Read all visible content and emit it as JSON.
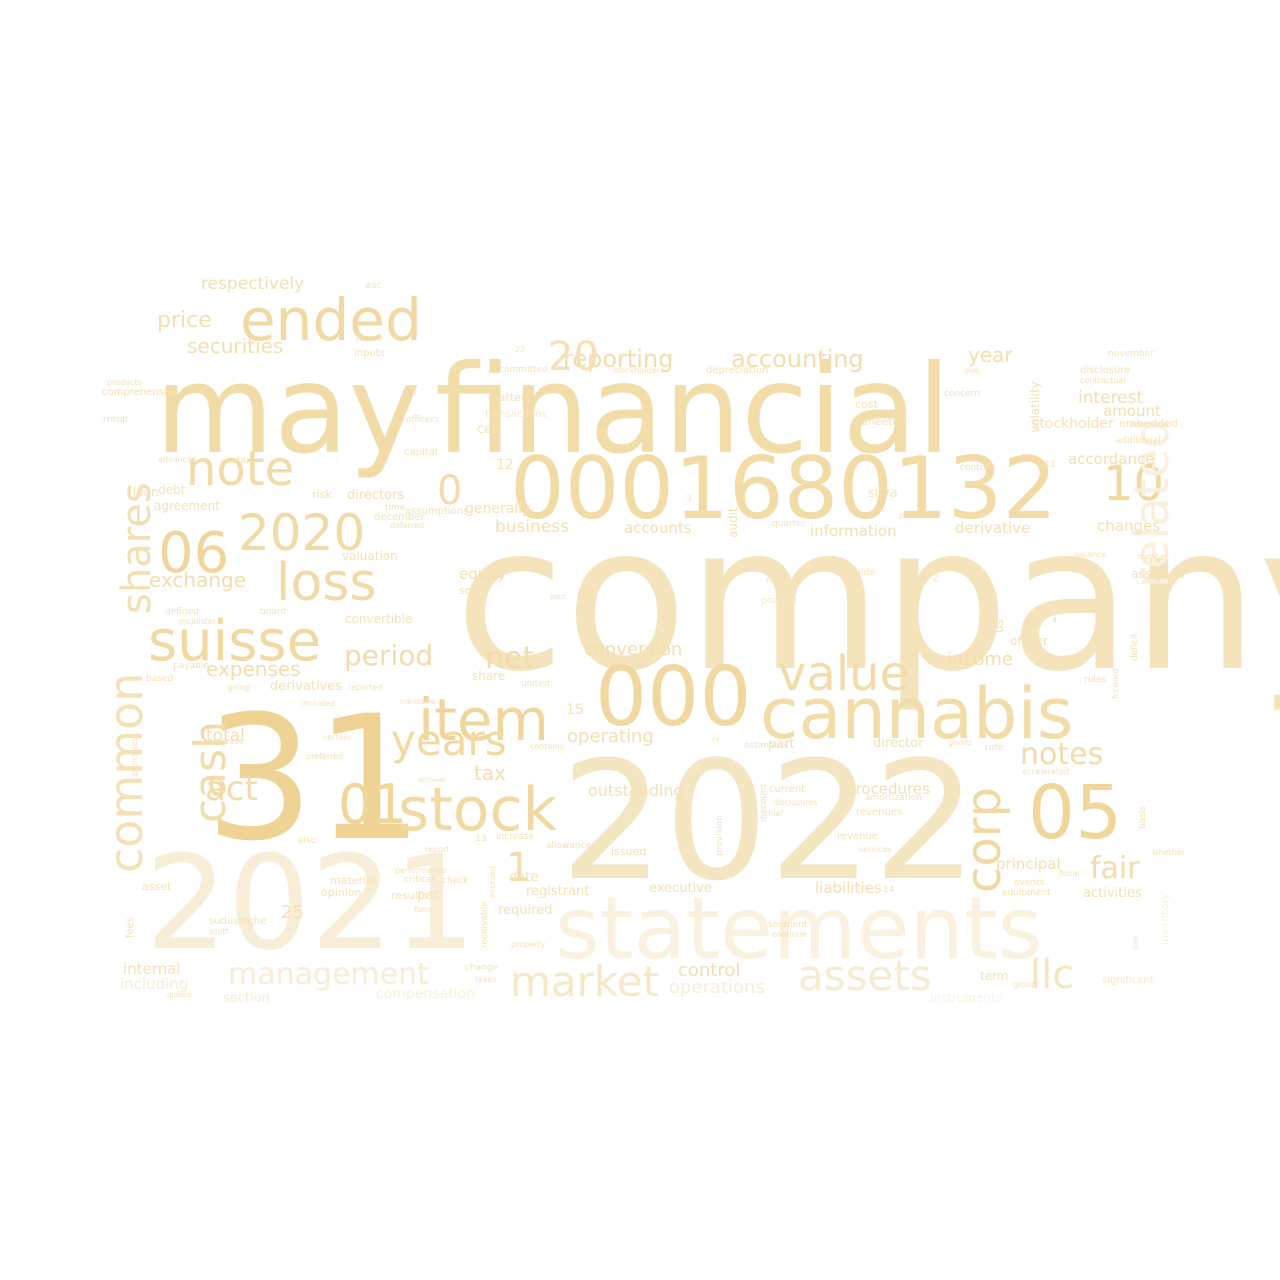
{
  "words": [
    {
      "text": "company",
      "shade": "#f4e3bb"
    },
    {
      "text": "may",
      "shade": "#f1dba6"
    },
    {
      "text": "financial",
      "shade": "#f2dda9"
    },
    {
      "text": "31",
      "shade": "#efd394"
    },
    {
      "text": "2022",
      "shade": "#f5e6c2"
    },
    {
      "text": "2021",
      "shade": "#f8edd6"
    },
    {
      "text": "statements",
      "shade": "#faf1df"
    },
    {
      "text": "0001680132",
      "shade": "#f2dba5"
    },
    {
      "text": "000",
      "shade": "#f1d8a0"
    },
    {
      "text": "cannabis",
      "shade": "#f2dca8"
    },
    {
      "text": "stock",
      "shade": "#f1d9a2"
    },
    {
      "text": "ended",
      "shade": "#f1d9a3"
    },
    {
      "text": "suisse",
      "shade": "#f1d9a1"
    },
    {
      "text": "note",
      "shade": "#f2dba6"
    },
    {
      "text": "2020",
      "shade": "#f2daa5"
    },
    {
      "text": "loss",
      "shade": "#f2daa6"
    },
    {
      "text": "06",
      "shade": "#f0d69c"
    },
    {
      "text": "item",
      "shade": "#f0d69d"
    },
    {
      "text": "value",
      "shade": "#f2dca9"
    },
    {
      "text": "05",
      "shade": "#f0d699"
    },
    {
      "text": "01",
      "shade": "#f0d69b"
    },
    {
      "text": "10",
      "shade": "#f1d8a0"
    },
    {
      "text": "years",
      "shade": "#f1d9a2"
    },
    {
      "text": "market",
      "shade": "#f6e8c9"
    },
    {
      "text": "assets",
      "shade": "#f7ebd0"
    },
    {
      "text": "llc",
      "shade": "#f5e5c0"
    },
    {
      "text": "management",
      "shade": "#f8edd7"
    },
    {
      "text": "related",
      "shade": "#f9f0dd"
    },
    {
      "text": "common",
      "shade": "#f4e1b6"
    },
    {
      "text": "shares",
      "shade": "#f3dfb1"
    },
    {
      "text": "cash",
      "shade": "#f2dca9"
    },
    {
      "text": "corp",
      "shade": "#f1d9a3"
    },
    {
      "text": "0",
      "shade": "#f2dca9"
    },
    {
      "text": "1",
      "shade": "#f2dcaa"
    },
    {
      "text": "act",
      "shade": "#f2dba8"
    },
    {
      "text": "notes",
      "shade": "#f2dca9"
    },
    {
      "text": "fair",
      "shade": "#f2dca9"
    },
    {
      "text": "period",
      "shade": "#f2dcaa"
    },
    {
      "text": "net",
      "shade": "#f2dcaa"
    },
    {
      "text": "reporting",
      "shade": "#f2ddab"
    },
    {
      "text": "accounting",
      "shade": "#f2ddab"
    },
    {
      "text": "respectively",
      "shade": "#f3dfb0"
    },
    {
      "text": "price",
      "shade": "#f3dfb0"
    },
    {
      "text": "securities",
      "shade": "#f3dfb0"
    },
    {
      "text": "exchange",
      "shade": "#f2ddac"
    },
    {
      "text": "expenses",
      "shade": "#f2ddac"
    },
    {
      "text": "conversion",
      "shade": "#f3deae"
    },
    {
      "text": "income",
      "shade": "#f3deae"
    },
    {
      "text": "year",
      "shade": "#f3deae"
    },
    {
      "text": "interest",
      "shade": "#f3deaf"
    },
    {
      "text": "amount",
      "shade": "#f3dfb0"
    },
    {
      "text": "accordance",
      "shade": "#f3dfb0"
    },
    {
      "text": "changes",
      "shade": "#f3dfb0"
    },
    {
      "text": "tax",
      "shade": "#f3deae"
    },
    {
      "text": "total",
      "shade": "#f3deaf"
    },
    {
      "text": "operating",
      "shade": "#f3deaf"
    },
    {
      "text": "business",
      "shade": "#f3dfb0"
    },
    {
      "text": "accounts",
      "shade": "#f3dfb1"
    },
    {
      "text": "information",
      "shade": "#f3dfb1"
    },
    {
      "text": "derivative",
      "shade": "#f3dfb1"
    },
    {
      "text": "equity",
      "shade": "#f3dfb1"
    },
    {
      "text": "control",
      "shade": "#f3dfb1"
    },
    {
      "text": "liabilities",
      "shade": "#f3dfb1"
    },
    {
      "text": "principal",
      "shade": "#f3dfb1"
    },
    {
      "text": "procedures",
      "shade": "#f3dfb1"
    },
    {
      "text": "registrant",
      "shade": "#f3e0b3"
    },
    {
      "text": "executive",
      "shade": "#f3e0b3"
    },
    {
      "text": "activities",
      "shade": "#f3e0b3"
    },
    {
      "text": "internal",
      "shade": "#f4e1b5"
    },
    {
      "text": "including",
      "shade": "#f8edd6"
    },
    {
      "text": "operations",
      "shade": "#f8edd6"
    },
    {
      "text": "compensation",
      "shade": "#f9efdb"
    },
    {
      "text": "section",
      "shade": "#f8ecd4"
    },
    {
      "text": "instruments",
      "shade": "#faf2e2"
    },
    {
      "text": "significant",
      "shade": "#f6e8c9"
    },
    {
      "text": "term",
      "shade": "#f4e2b7"
    },
    {
      "text": "inventory",
      "shade": "#faf2e2"
    },
    {
      "text": "directors",
      "shade": "#f3e0b3"
    },
    {
      "text": "risk",
      "shade": "#f3e0b3"
    },
    {
      "text": "debt",
      "shade": "#f4e1b5"
    },
    {
      "text": "loan",
      "shade": "#f4e1b5"
    },
    {
      "text": "agreement",
      "shade": "#f4e1b5"
    },
    {
      "text": "ceo",
      "shade": "#f4e1b5"
    },
    {
      "text": "matters",
      "shade": "#f4e1b5"
    },
    {
      "text": "capital",
      "shade": "#f4e1b5"
    },
    {
      "text": "suneetha",
      "shade": "#f4e1b5"
    },
    {
      "text": "cost",
      "shade": "#f4e1b5"
    },
    {
      "text": "volatility",
      "shade": "#f4e1b5"
    },
    {
      "text": "audit",
      "shade": "#f3e0b3"
    },
    {
      "text": "controls",
      "shade": "#f3e0b3"
    },
    {
      "text": "silva",
      "shade": "#f4e1b5"
    },
    {
      "text": "us",
      "shade": "#f4e1b5"
    },
    {
      "text": "officer",
      "shade": "#f4e1b5"
    },
    {
      "text": "assigned",
      "shade": "#f4e1b5"
    },
    {
      "text": "share",
      "shade": "#f4e1b5"
    },
    {
      "text": "derivatives",
      "shade": "#f4e1b5"
    },
    {
      "text": "convertible",
      "shade": "#f4e1b5"
    },
    {
      "text": "valuation",
      "shade": "#f4e1b5"
    },
    {
      "text": "part",
      "shade": "#f4e1b5"
    },
    {
      "text": "director",
      "shade": "#f4e1b5"
    },
    {
      "text": "required",
      "shade": "#f4e1b5"
    },
    {
      "text": "date",
      "shade": "#f4e1b5"
    },
    {
      "text": "per",
      "shade": "#f4e1b5"
    },
    {
      "text": "asset",
      "shade": "#f4e1b5"
    },
    {
      "text": "opinion",
      "shade": "#f4e1b5"
    },
    {
      "text": "material",
      "shade": "#f4e1b5"
    },
    {
      "text": "results",
      "shade": "#f4e1b5"
    },
    {
      "text": "sudusinghe",
      "shade": "#f4e1b5"
    },
    {
      "text": "issued",
      "shade": "#f4e1b5"
    },
    {
      "text": "current",
      "shade": "#f4e1b5"
    },
    {
      "text": "revenues",
      "shade": "#f4e1b5"
    },
    {
      "text": "revenue",
      "shade": "#f4e1b5"
    },
    {
      "text": "fees",
      "shade": "#f4e1b5"
    },
    {
      "text": "discount",
      "shade": "#f4e1b5"
    },
    {
      "text": "provision",
      "shade": "#f4e1b5"
    },
    {
      "text": "embedded",
      "shade": "#f4e1b5"
    },
    {
      "text": "disclosure",
      "shade": "#f4e1b5"
    },
    {
      "text": "november",
      "shade": "#f4e1b5"
    },
    {
      "text": "asc",
      "shade": "#f4e1b5"
    },
    {
      "text": "inputs",
      "shade": "#f4e1b5"
    },
    {
      "text": "future",
      "shade": "#f4e1b5"
    },
    {
      "text": "committee",
      "shade": "#f4e1b5"
    },
    {
      "text": "depreciation",
      "shade": "#f4e1b5"
    },
    {
      "text": "stockholders",
      "shade": "#f4e1b5"
    },
    {
      "text": "transactions",
      "shade": "#f6e7c7"
    },
    {
      "text": "officers",
      "shade": "#f4e1b5"
    },
    {
      "text": "concern",
      "shade": "#f4e1b5"
    },
    {
      "text": "due",
      "shade": "#f4e1b5"
    },
    {
      "text": "contractual",
      "shade": "#f4e1b5"
    },
    {
      "text": "comprehensive",
      "shade": "#f4e1b5"
    },
    {
      "text": "products",
      "shade": "#f4e1b5"
    },
    {
      "text": "result",
      "shade": "#f4e1b5"
    },
    {
      "text": "advances",
      "shade": "#f4e1b5"
    },
    {
      "text": "data",
      "shade": "#f4e1b5"
    },
    {
      "text": "time",
      "shade": "#f4e1b5"
    },
    {
      "text": "december",
      "shade": "#f4e1b5"
    },
    {
      "text": "deferred",
      "shade": "#f4e1b5"
    },
    {
      "text": "assumptions",
      "shade": "#f4e1b5"
    },
    {
      "text": "quarter",
      "shade": "#f4e1b5"
    },
    {
      "text": "pursuant",
      "shade": "#f4e1b5"
    },
    {
      "text": "additional",
      "shade": "#f4e1b5"
    },
    {
      "text": "defined",
      "shade": "#f4e1b5"
    },
    {
      "text": "mcalister",
      "shade": "#f4e1b5"
    },
    {
      "text": "board",
      "shade": "#f4e1b5"
    },
    {
      "text": "payable",
      "shade": "#f4e1b5"
    },
    {
      "text": "based",
      "shade": "#f4e1b5"
    },
    {
      "text": "going",
      "shade": "#f4e1b5"
    },
    {
      "text": "included",
      "shade": "#f4e1b5"
    },
    {
      "text": "certain",
      "shade": "#f4e1b5"
    },
    {
      "text": "nandana",
      "shade": "#f4e1b5"
    },
    {
      "text": "sold",
      "shade": "#f4e1b5"
    },
    {
      "text": "paid",
      "shade": "#f4e1b5"
    },
    {
      "text": "following",
      "shade": "#f4e1b5"
    },
    {
      "text": "position",
      "shade": "#f6e7c7"
    },
    {
      "text": "provide",
      "shade": "#f4e1b5"
    },
    {
      "text": "rule",
      "shade": "#f4e1b5"
    },
    {
      "text": "balance",
      "shade": "#f4e1b5"
    },
    {
      "text": "number",
      "shade": "#f4e1b5"
    },
    {
      "text": "rules",
      "shade": "#f4e1b5"
    },
    {
      "text": "forward",
      "shade": "#f4e1b5"
    },
    {
      "text": "deficit",
      "shade": "#f4e1b5"
    },
    {
      "text": "estimates",
      "shade": "#f4e1b5"
    },
    {
      "text": "rate",
      "shade": "#f4e1b5"
    },
    {
      "text": "goods",
      "shade": "#f4e1b5"
    },
    {
      "text": "accelerated",
      "shade": "#f4e1b5"
    },
    {
      "text": "amortization",
      "shade": "#f4e1b5"
    },
    {
      "text": "disclosures",
      "shade": "#f4e1b5"
    },
    {
      "text": "chief",
      "shade": "#f4e1b5"
    },
    {
      "text": "services",
      "shade": "#f4e1b5"
    },
    {
      "text": "basis",
      "shade": "#f4e1b5"
    },
    {
      "text": "whether",
      "shade": "#f4e1b5"
    },
    {
      "text": "fiscal",
      "shade": "#f4e1b5"
    },
    {
      "text": "events",
      "shade": "#f4e1b5"
    },
    {
      "text": "equipment",
      "shade": "#f4e1b5"
    },
    {
      "text": "segment",
      "shade": "#f4e1b5"
    },
    {
      "text": "continue",
      "shade": "#f4e1b5"
    },
    {
      "text": "one",
      "shade": "#f4e1b5"
    },
    {
      "text": "group",
      "shade": "#f4e1b5"
    },
    {
      "text": "increase",
      "shade": "#f4e1b5"
    },
    {
      "text": "allowance",
      "shade": "#f4e1b5"
    },
    {
      "text": "report",
      "shade": "#f4e1b5"
    },
    {
      "text": "also",
      "shade": "#f4e1b5"
    },
    {
      "text": "check",
      "shade": "#f4e1b5"
    },
    {
      "text": "critical",
      "shade": "#f4e1b5"
    },
    {
      "text": "form",
      "shade": "#f4e1b5"
    },
    {
      "text": "change",
      "shade": "#f4e1b5"
    },
    {
      "text": "taxes",
      "shade": "#f4e1b5"
    },
    {
      "text": "receivable",
      "shade": "#f4e1b5"
    },
    {
      "text": "property",
      "shade": "#f4e1b5"
    },
    {
      "text": "accrued",
      "shade": "#f4e1b5"
    },
    {
      "text": "performance",
      "shade": "#f4e1b5"
    },
    {
      "text": "annual",
      "shade": "#f4e1b5"
    },
    {
      "text": "preferred",
      "shade": "#f4e1b5"
    },
    {
      "text": "united",
      "shade": "#f4e1b5"
    },
    {
      "text": "contains",
      "shade": "#f4e1b5"
    },
    {
      "text": "principles",
      "shade": "#f4e1b5"
    },
    {
      "text": "scott",
      "shade": "#f4e1b5"
    },
    {
      "text": "quoted",
      "shade": "#f4e1b5"
    },
    {
      "text": "decrease",
      "shade": "#f4e1b5"
    },
    {
      "text": "reported",
      "shade": "#f4e1b5"
    },
    {
      "text": "generally",
      "shade": "#f4e1b5"
    },
    {
      "text": "stockholder",
      "shade": "#f4e1b5"
    },
    {
      "text": "outstanding",
      "shade": "#f4e1b5"
    },
    {
      "text": "15",
      "shade": "#f4e1b5"
    },
    {
      "text": "25",
      "shade": "#f4e1b5"
    },
    {
      "text": "12",
      "shade": "#f4e1b5"
    },
    {
      "text": "22",
      "shade": "#f4e1b5"
    },
    {
      "text": "2",
      "shade": "#f4e1b5"
    },
    {
      "text": "3",
      "shade": "#f4e1b5"
    },
    {
      "text": "4",
      "shade": "#f4e1b5"
    },
    {
      "text": "11",
      "shade": "#f4e1b5"
    },
    {
      "text": "13",
      "shade": "#f4e1b5"
    },
    {
      "text": "14",
      "shade": "#f4e1b5"
    },
    {
      "text": "20",
      "shade": "#f4e1b5"
    },
    {
      "text": "30",
      "shade": "#f4e1b5"
    },
    {
      "text": "5",
      "shade": "#f4e1b5"
    },
    {
      "text": "•",
      "shade": "#f1d9a2"
    }
  ]
}
